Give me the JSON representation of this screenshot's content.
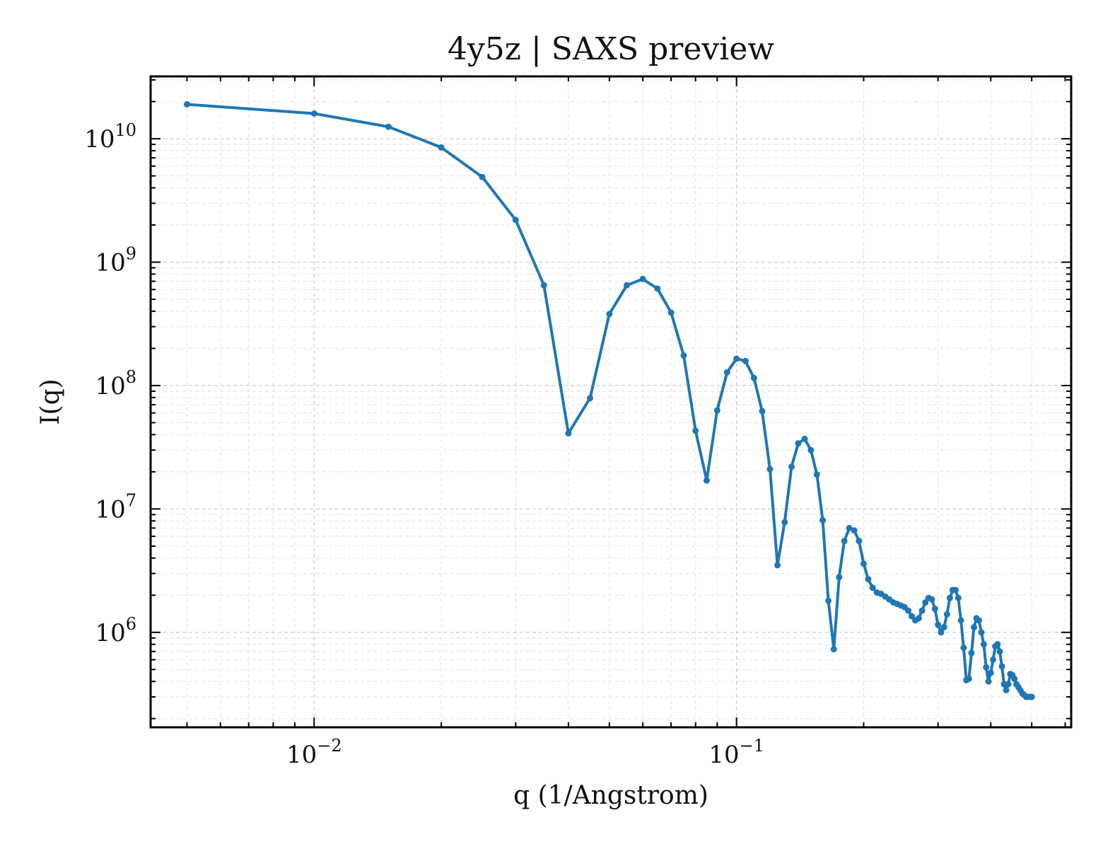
{
  "chart_data": {
    "type": "line",
    "title": "4y5z | SAXS preview",
    "xlabel": "q (1/Angstrom)",
    "ylabel": "I(q)",
    "xscale": "log",
    "yscale": "log",
    "xlim": [
      0.0041,
      0.62
    ],
    "ylim": [
      170000,
      32000000000
    ],
    "grid": true,
    "legend": "none",
    "color": "#1f77b4",
    "x_ticks": [
      {
        "value": 0.01,
        "base": "10",
        "exp": "−2"
      },
      {
        "value": 0.1,
        "base": "10",
        "exp": "−1"
      }
    ],
    "y_ticks": [
      {
        "value": 1000000,
        "base": "10",
        "exp": "6"
      },
      {
        "value": 10000000,
        "base": "10",
        "exp": "7"
      },
      {
        "value": 100000000,
        "base": "10",
        "exp": "8"
      },
      {
        "value": 1000000000,
        "base": "10",
        "exp": "9"
      },
      {
        "value": 10000000000,
        "base": "10",
        "exp": "10"
      }
    ],
    "series": [
      {
        "x": [
          0.005,
          0.01,
          0.015,
          0.02,
          0.025,
          0.03,
          0.035,
          0.04,
          0.045,
          0.05,
          0.055,
          0.06,
          0.065,
          0.07,
          0.075,
          0.08,
          0.085,
          0.09,
          0.095,
          0.1,
          0.105,
          0.11,
          0.115,
          0.12,
          0.125,
          0.13,
          0.135,
          0.14,
          0.145,
          0.15,
          0.155,
          0.16,
          0.165,
          0.17,
          0.175,
          0.18,
          0.185,
          0.19,
          0.195,
          0.2,
          0.205,
          0.21,
          0.215,
          0.22,
          0.225,
          0.23,
          0.235,
          0.24,
          0.245,
          0.25,
          0.255,
          0.26,
          0.265,
          0.27,
          0.275,
          0.28,
          0.285,
          0.29,
          0.295,
          0.3,
          0.305,
          0.31,
          0.315,
          0.32,
          0.325,
          0.33,
          0.335,
          0.34,
          0.345,
          0.35,
          0.355,
          0.36,
          0.365,
          0.37,
          0.375,
          0.38,
          0.385,
          0.39,
          0.395,
          0.4,
          0.405,
          0.41,
          0.415,
          0.42,
          0.425,
          0.43,
          0.435,
          0.44,
          0.445,
          0.45,
          0.455,
          0.46,
          0.465,
          0.47,
          0.475,
          0.48,
          0.485,
          0.49,
          0.495,
          0.5
        ],
        "y": [
          19000000000,
          16000000000,
          12500000000,
          8500000000,
          4900000000,
          2200000000,
          650000000,
          41000000,
          79000000,
          380000000,
          650000000,
          730000000,
          610000000,
          390000000,
          175000000,
          43000000,
          17000000,
          63000000,
          128000000,
          165000000,
          158000000,
          115000000,
          62000000,
          21000000,
          3500000,
          7800000,
          22000000,
          34000000,
          37000000,
          30000000,
          19000000,
          8100000,
          1800000,
          730000,
          2800000,
          5500000,
          7000000,
          6700000,
          5500000,
          3600000,
          2700000,
          2300000,
          2100000,
          2050000,
          1950000,
          1850000,
          1750000,
          1700000,
          1650000,
          1600000,
          1500000,
          1350000,
          1250000,
          1300000,
          1500000,
          1750000,
          1900000,
          1850000,
          1550000,
          1150000,
          1000000,
          1100000,
          1400000,
          1900000,
          2200000,
          2200000,
          1900000,
          1250000,
          750000,
          410000,
          420000,
          680000,
          1100000,
          1300000,
          1250000,
          1000000,
          800000,
          520000,
          400000,
          470000,
          600000,
          770000,
          800000,
          700000,
          530000,
          380000,
          340000,
          380000,
          460000,
          450000,
          420000,
          380000,
          360000,
          340000,
          320000,
          310000,
          300000,
          300000,
          300000,
          300000
        ]
      }
    ]
  }
}
